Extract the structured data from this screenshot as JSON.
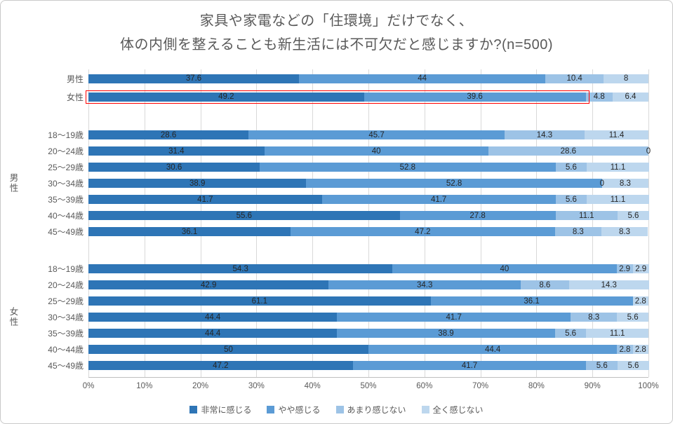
{
  "page": {
    "title_line1": "家具や家電などの「住環境」だけでなく、",
    "title_line2": "体の内側を整えることも新生活には不可欠だと感じますか?(n=500)"
  },
  "chart_data": {
    "type": "bar",
    "subtype": "stacked-horizontal",
    "title": "家具や家電などの「住環境」だけでなく、体の内側を整えることも新生活には不可欠だと感じますか?(n=500)",
    "xlim": [
      0,
      100
    ],
    "x_ticks": [
      "0%",
      "10%",
      "20%",
      "30%",
      "40%",
      "50%",
      "60%",
      "70%",
      "80%",
      "90%",
      "100%"
    ],
    "series": [
      "非常に感じる",
      "やや感じる",
      "あまり感じない",
      "全く感じない"
    ],
    "colors": [
      "#2e75b6",
      "#5b9bd5",
      "#9dc3e6",
      "#bdd7ee"
    ],
    "highlight_color": "#ff0000",
    "grid_color": "#d9d9d9",
    "groups": [
      {
        "group_label": "",
        "rows": [
          {
            "label": "男性",
            "values": [
              37.6,
              44,
              10.4,
              8
            ]
          },
          {
            "label": "女性",
            "values": [
              49.2,
              39.6,
              4.8,
              6.4
            ],
            "highlighted": true
          }
        ]
      },
      {
        "group_label": "男性",
        "rows": [
          {
            "label": "18〜19歳",
            "values": [
              28.6,
              45.7,
              14.3,
              11.4
            ]
          },
          {
            "label": "20〜24歳",
            "values": [
              31.4,
              40,
              28.6,
              0
            ]
          },
          {
            "label": "25〜29歳",
            "values": [
              30.6,
              52.8,
              5.6,
              11.1
            ]
          },
          {
            "label": "30〜34歳",
            "values": [
              38.9,
              52.8,
              0,
              8.3
            ]
          },
          {
            "label": "35〜39歳",
            "values": [
              41.7,
              41.7,
              5.6,
              11.1
            ]
          },
          {
            "label": "40〜44歳",
            "values": [
              55.6,
              27.8,
              11.1,
              5.6
            ]
          },
          {
            "label": "45〜49歳",
            "values": [
              36.1,
              47.2,
              8.3,
              8.3
            ]
          }
        ]
      },
      {
        "group_label": "女性",
        "rows": [
          {
            "label": "18〜19歳",
            "values": [
              54.3,
              40,
              2.9,
              2.9
            ]
          },
          {
            "label": "20〜24歳",
            "values": [
              42.9,
              34.3,
              8.6,
              14.3
            ]
          },
          {
            "label": "25〜29歳",
            "values": [
              61.1,
              36.1,
              0,
              2.8
            ],
            "labels": [
              "61.1",
              "36.1",
              "",
              "2.8"
            ]
          },
          {
            "label": "30〜34歳",
            "values": [
              44.4,
              41.7,
              8.3,
              5.6
            ]
          },
          {
            "label": "35〜39歳",
            "values": [
              44.4,
              38.9,
              5.6,
              11.1
            ]
          },
          {
            "label": "40〜44歳",
            "values": [
              50,
              44.4,
              2.8,
              2.8
            ]
          },
          {
            "label": "45〜49歳",
            "values": [
              47.2,
              41.7,
              5.6,
              5.6
            ]
          }
        ]
      }
    ],
    "legend": [
      "非常に感じる",
      "やや感じる",
      "あまり感じない",
      "全く感じない"
    ],
    "legend_position": "bottom"
  }
}
